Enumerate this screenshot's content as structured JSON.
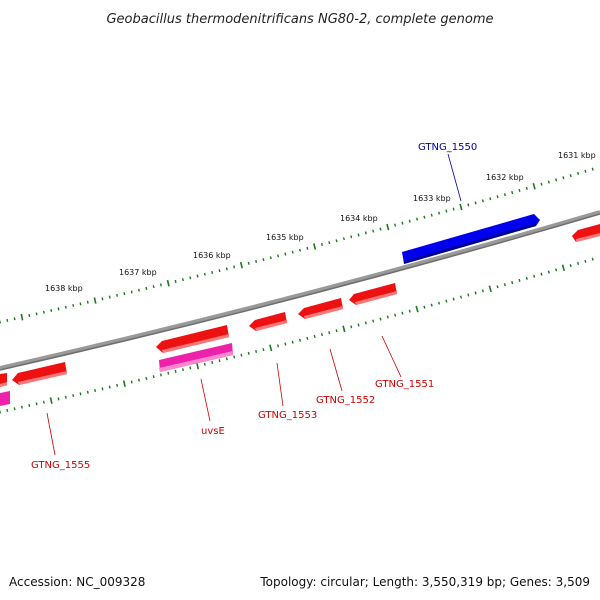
{
  "title": "Geobacillus thermodenitrificans NG80-2, complete genome",
  "footer": {
    "accession": "Accession: NC_009328",
    "summary": "Topology: circular; Length: 3,550,319 bp; Genes: 3,509"
  },
  "colors": {
    "backbone": "#808080",
    "ticks": "#1a7a1a",
    "gene_forward": "#0000dd",
    "gene_reverse": "#ee1111",
    "gene_rna": "#ee22aa",
    "label_forward": "#0000aa",
    "label_reverse": "#cc0000"
  },
  "scale_labels": [
    "1631 kbp",
    "1632 kbp",
    "1633 kbp",
    "1634 kbp",
    "1635 kbp",
    "1636 kbp",
    "1637 kbp",
    "1638 kbp"
  ],
  "genes": [
    {
      "label": "GTNG_1550",
      "strand": "forward",
      "type": "CDS"
    },
    {
      "label": "GTNG_1551",
      "strand": "reverse",
      "type": "CDS"
    },
    {
      "label": "GTNG_1552",
      "strand": "reverse",
      "type": "CDS"
    },
    {
      "label": "GTNG_1553",
      "strand": "reverse",
      "type": "CDS"
    },
    {
      "label": "uvsE",
      "strand": "reverse",
      "type": "CDS"
    },
    {
      "label": "GTNG_1555",
      "strand": "reverse",
      "type": "CDS"
    }
  ]
}
